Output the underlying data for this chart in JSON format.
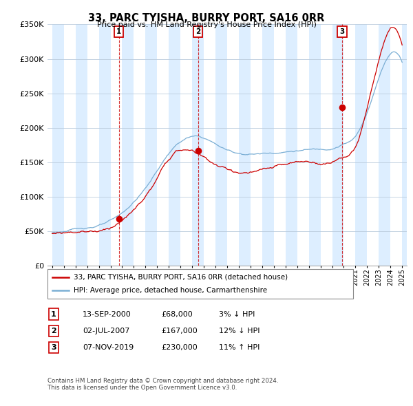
{
  "title": "33, PARC TYISHA, BURRY PORT, SA16 0RR",
  "subtitle": "Price paid vs. HM Land Registry's House Price Index (HPI)",
  "hpi_label": "HPI: Average price, detached house, Carmarthenshire",
  "price_label": "33, PARC TYISHA, BURRY PORT, SA16 0RR (detached house)",
  "price_color": "#cc0000",
  "hpi_color": "#7aaed4",
  "band_color": "#ddeeff",
  "ylim": [
    0,
    350000
  ],
  "yticks": [
    0,
    50000,
    100000,
    150000,
    200000,
    250000,
    300000,
    350000
  ],
  "ytick_labels": [
    "£0",
    "£50K",
    "£100K",
    "£150K",
    "£200K",
    "£250K",
    "£300K",
    "£350K"
  ],
  "xlim_start": 1994.6,
  "xlim_end": 2025.4,
  "sales": [
    {
      "label": "1",
      "date": "13-SEP-2000",
      "price": 68000,
      "hpi_pct": "3% ↓ HPI",
      "x_year": 2000.71
    },
    {
      "label": "2",
      "date": "02-JUL-2007",
      "price": 167000,
      "hpi_pct": "12% ↓ HPI",
      "x_year": 2007.5
    },
    {
      "label": "3",
      "date": "07-NOV-2019",
      "price": 230000,
      "hpi_pct": "11% ↑ HPI",
      "x_year": 2019.85
    }
  ],
  "footnote1": "Contains HM Land Registry data © Crown copyright and database right 2024.",
  "footnote2": "This data is licensed under the Open Government Licence v3.0."
}
